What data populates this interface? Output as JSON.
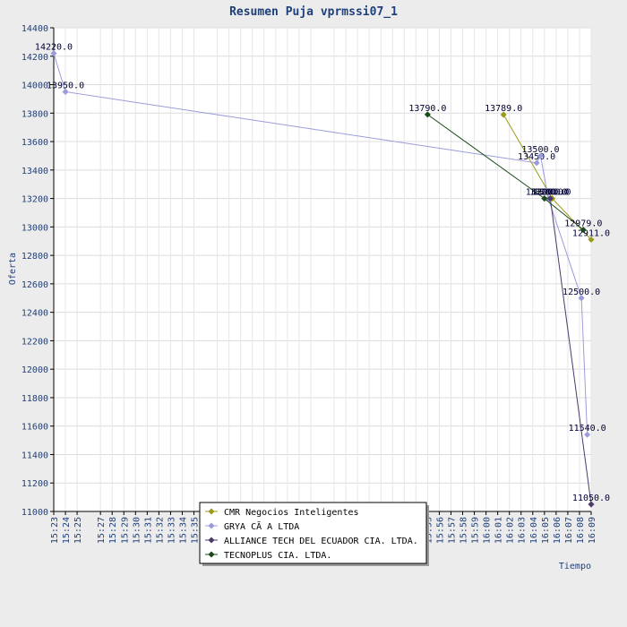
{
  "chart_data": {
    "type": "line",
    "title": "Resumen Puja vprmssi07_1",
    "xlabel": "Tiempo",
    "ylabel": "Oferta",
    "ylim": [
      11000,
      14400
    ],
    "yticks": [
      11000,
      11200,
      11400,
      11600,
      11800,
      12000,
      12200,
      12400,
      12600,
      12800,
      13000,
      13200,
      13400,
      13600,
      13800,
      14000,
      14200,
      14400
    ],
    "xticks": [
      "15:23",
      "15:24",
      "15:25",
      "15:27",
      "15:28",
      "15:29",
      "15:30",
      "15:31",
      "15:32",
      "15:33",
      "15:34",
      "15:35",
      "15:37",
      "15:38",
      "15:39",
      "15:40",
      "15:41",
      "15:42",
      "15:43",
      "15:44",
      "15:45",
      "15:47",
      "15:48",
      "15:49",
      "15:50",
      "15:51",
      "15:52",
      "15:53",
      "15:54",
      "15:55",
      "15:56",
      "15:57",
      "15:58",
      "15:59",
      "16:00",
      "16:01",
      "16:02",
      "16:03",
      "16:04",
      "16:05",
      "16:06",
      "16:07",
      "16:08",
      "16:09"
    ],
    "grid": true,
    "legend_position": "bottom-center",
    "series": [
      {
        "name": "CMR Negocios Inteligentes",
        "color": "#9a9a1a",
        "points": [
          [
            "16:01:30",
            13789
          ],
          [
            "16:05:40",
            13200
          ],
          [
            "16:09",
            12911
          ]
        ],
        "labels": [
          "13789.0",
          "13200.0",
          "12911.0"
        ]
      },
      {
        "name": "GRYA CÃ A LTDA",
        "color": "#9b9bdb",
        "points": [
          [
            "15:23",
            14220
          ],
          [
            "15:24",
            13950
          ],
          [
            "16:04:20",
            13450
          ],
          [
            "16:04:40",
            13500
          ],
          [
            "16:05:20",
            13200
          ],
          [
            "16:08:10",
            12500
          ],
          [
            "16:08:40",
            11540
          ]
        ],
        "labels": [
          "14220.0",
          "13950.0",
          "13450.0",
          "13500.0",
          "13200.0",
          "12500.0",
          "11540.0"
        ]
      },
      {
        "name": "ALLIANCE TECH DEL ECUADOR CIA. LTDA.",
        "color": "#4b3b6b",
        "points": [
          [
            "16:05:30",
            13200
          ],
          [
            "16:09",
            11050
          ]
        ],
        "labels": [
          "13200.0",
          "11050.0"
        ]
      },
      {
        "name": "TECNOPLUS CIA. LTDA.",
        "color": "#1a4a1a",
        "points": [
          [
            "15:55",
            13790
          ],
          [
            "16:05:00",
            13200
          ],
          [
            "16:08:20",
            12979
          ]
        ],
        "labels": [
          "13790.0",
          "13200.0",
          "12979.0"
        ]
      }
    ]
  }
}
